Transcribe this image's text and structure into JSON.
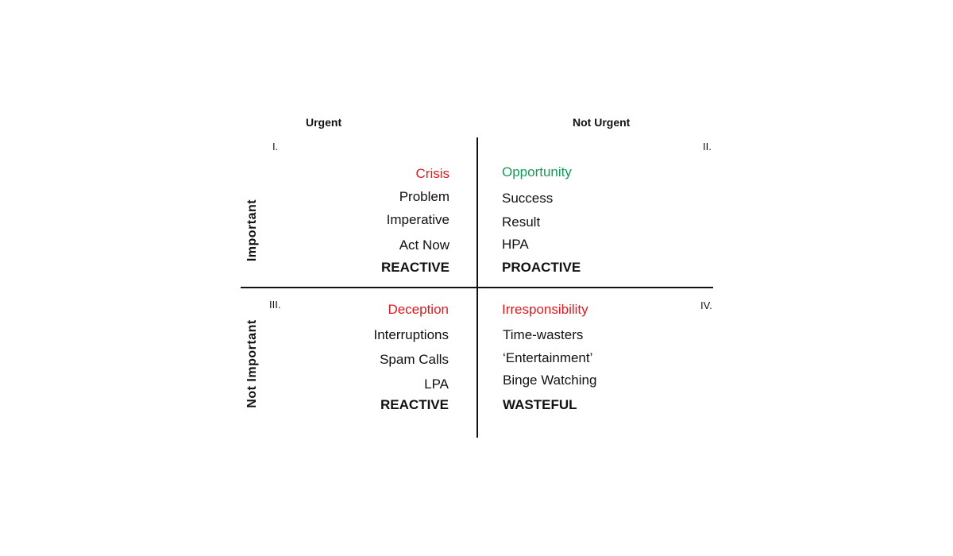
{
  "columns": {
    "urgent": "Urgent",
    "not_urgent": "Not Urgent"
  },
  "rows": {
    "important": "Important",
    "not_important": "Not Important"
  },
  "colors": {
    "red": "#e0191f",
    "green": "#149a5a",
    "text": "#111111"
  },
  "quadrants": {
    "q1": {
      "numeral": "I.",
      "heading": "Crisis",
      "items": [
        "Problem",
        "Imperative",
        "Act Now"
      ],
      "tag": "REACTIVE"
    },
    "q2": {
      "numeral": "II.",
      "heading": "Opportunity",
      "items": [
        "Success",
        "Result",
        "HPA"
      ],
      "tag": "PROACTIVE"
    },
    "q3": {
      "numeral": "III.",
      "heading": "Deception",
      "items": [
        "Interruptions",
        "Spam Calls",
        "LPA"
      ],
      "tag": "REACTIVE"
    },
    "q4": {
      "numeral": "IV.",
      "heading": "Irresponsibility",
      "items": [
        "Time-wasters",
        "‘Entertainment’",
        "Binge Watching"
      ],
      "tag": "WASTEFUL"
    }
  }
}
